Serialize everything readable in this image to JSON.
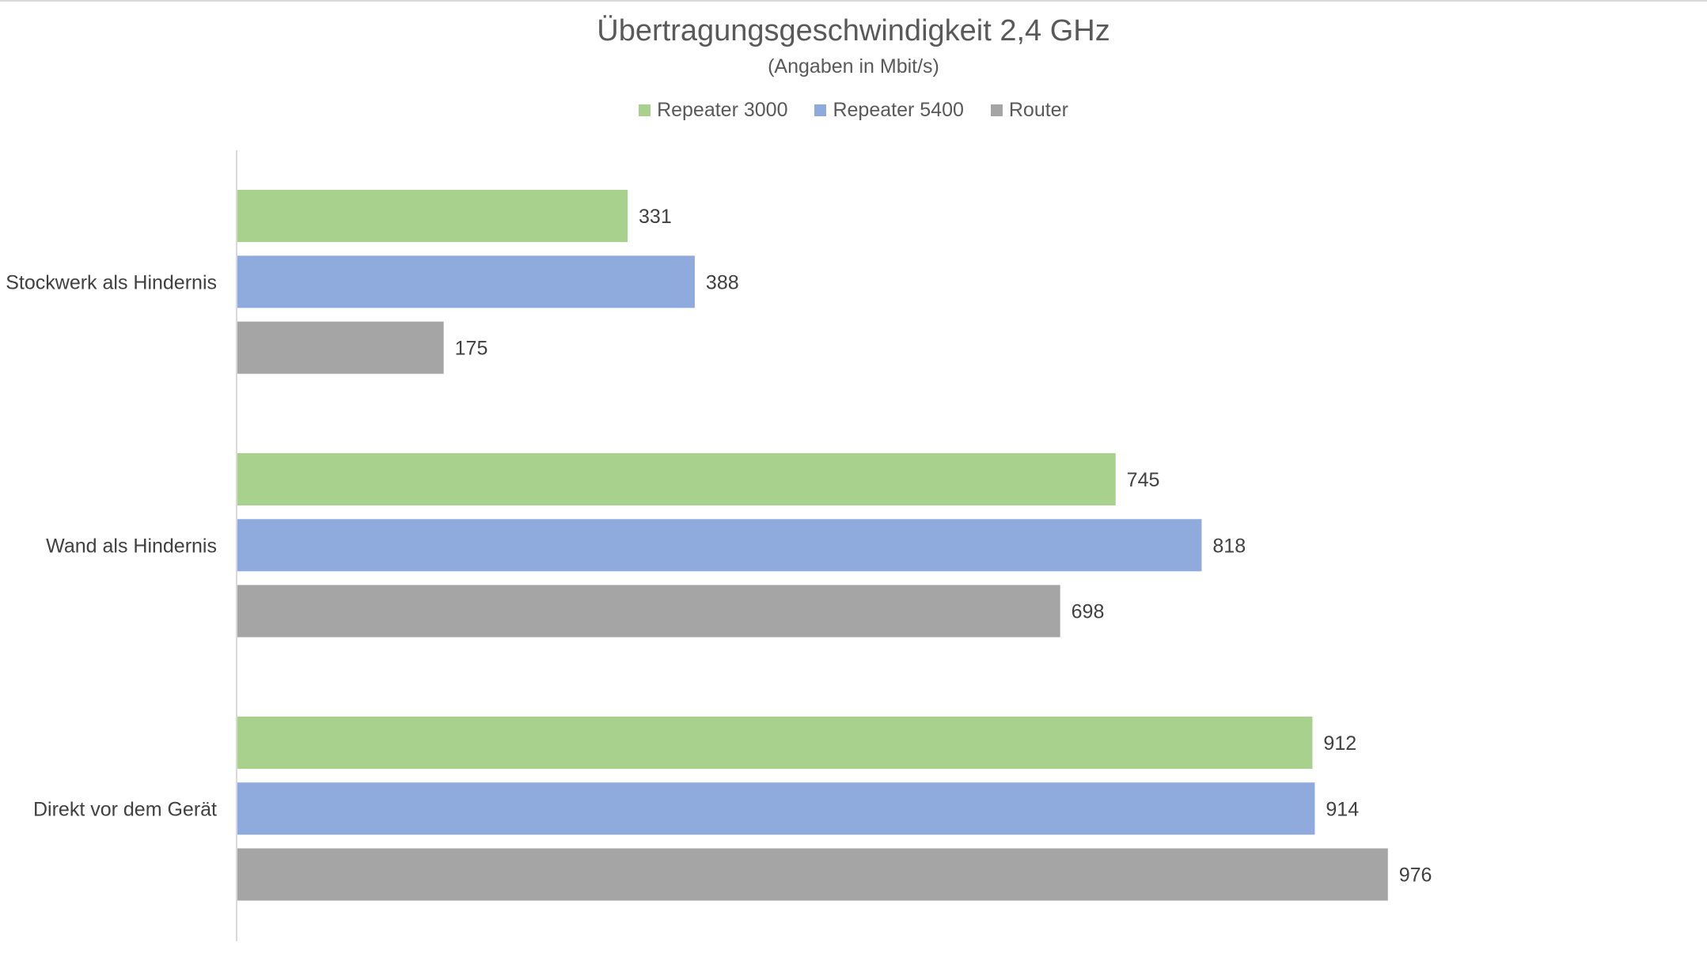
{
  "chart_data": {
    "type": "bar",
    "orientation": "horizontal",
    "title": "Übertragungsgeschwindigkeit 2,4 GHz",
    "subtitle": "(Angaben in Mbit/s)",
    "categories": [
      "Stockwerk als Hindernis",
      "Wand als Hindernis",
      "Direkt vor dem Gerät"
    ],
    "series": [
      {
        "name": "Repeater 3000",
        "color": "#a9d18e",
        "values": [
          331,
          745,
          912
        ]
      },
      {
        "name": "Repeater 5400",
        "color": "#8faadc",
        "values": [
          388,
          818,
          914
        ]
      },
      {
        "name": "Router",
        "color": "#a5a5a5",
        "values": [
          175,
          698,
          976
        ]
      }
    ],
    "xlim": [
      0,
      1000
    ],
    "xlabel": "",
    "ylabel": "",
    "grid": false,
    "legend": "top-center",
    "data_labels": true
  }
}
